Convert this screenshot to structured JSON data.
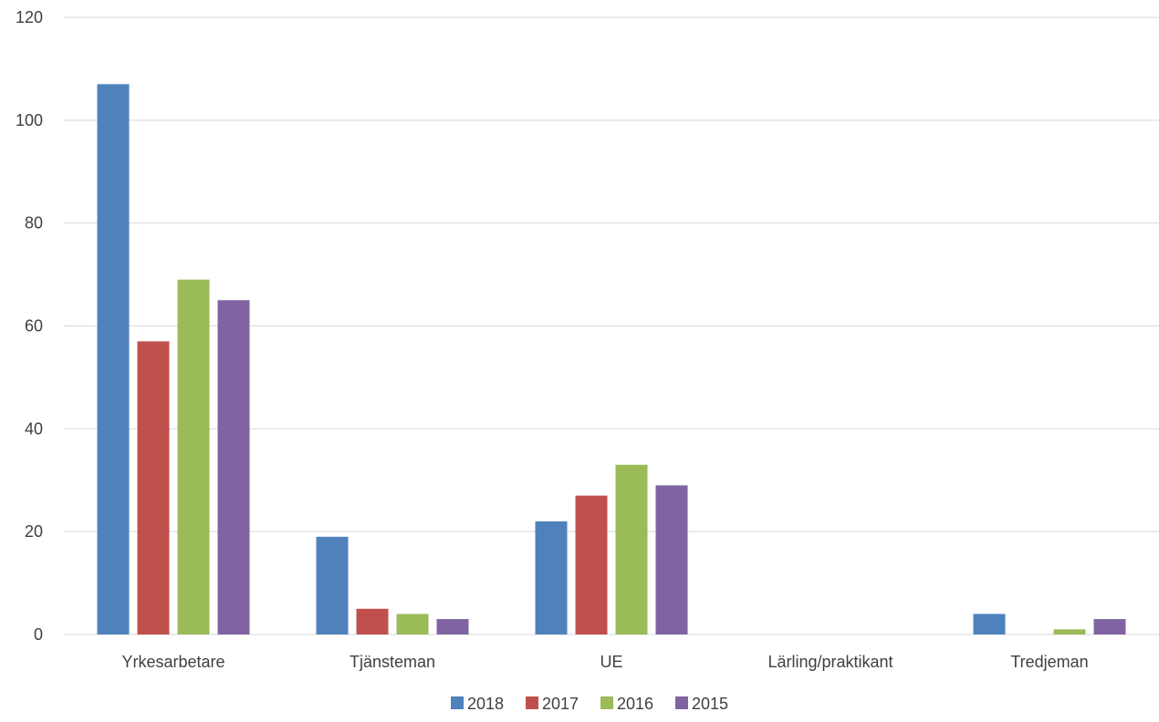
{
  "chart_data": {
    "type": "bar",
    "title": "",
    "xlabel": "",
    "ylabel": "",
    "ylim": [
      0,
      120
    ],
    "yticks": [
      0,
      20,
      40,
      60,
      80,
      100,
      120
    ],
    "grid": true,
    "legend_position": "bottom",
    "categories": [
      "Yrkesarbetare",
      "Tjänsteman",
      "UE",
      "Lärling/praktikant",
      "Tredjeman"
    ],
    "series": [
      {
        "name": "2018",
        "color": "#4f81bd",
        "values": [
          107,
          19,
          22,
          0,
          4
        ]
      },
      {
        "name": "2017",
        "color": "#c0504d",
        "values": [
          57,
          5,
          27,
          0,
          0
        ]
      },
      {
        "name": "2016",
        "color": "#9bbb59",
        "values": [
          69,
          4,
          33,
          0,
          1
        ]
      },
      {
        "name": "2015",
        "color": "#8064a2",
        "values": [
          65,
          3,
          29,
          0,
          3
        ]
      }
    ]
  }
}
